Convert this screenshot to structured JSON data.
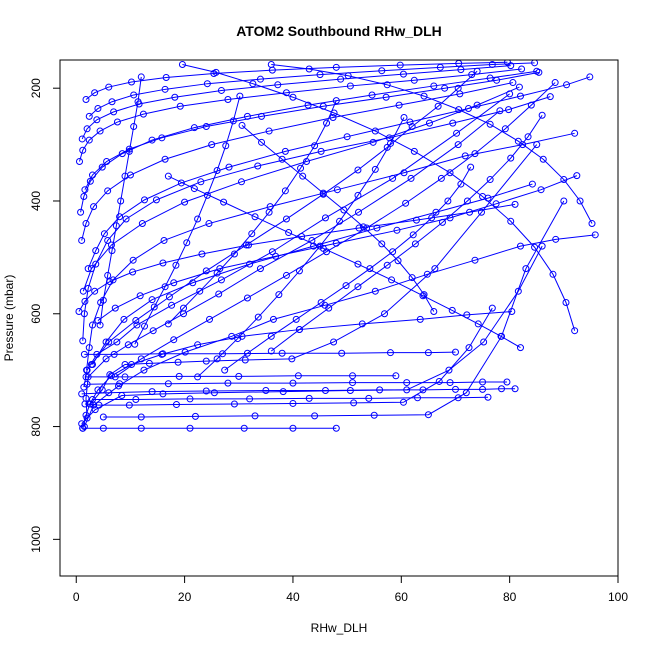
{
  "chart_data": {
    "type": "line",
    "title": "ATOM2 Southbound RHw_DLH",
    "xlabel": "RHw_DLH",
    "ylabel": "Pressure (mbar)",
    "xlim": [
      -3,
      100
    ],
    "ylim": [
      1065,
      150
    ],
    "y_inverted": true,
    "grid": false,
    "legend": "none",
    "series_color": "#0000ff",
    "x_ticks": [
      0,
      20,
      40,
      60,
      80,
      100
    ],
    "y_ticks": [
      200,
      400,
      600,
      800,
      1000
    ],
    "series": [
      {
        "x": [
          1.2,
          1.8,
          2.5,
          4.0,
          6.5,
          10.2,
          15.8,
          22.4,
          30.6,
          41.2,
          52.8,
          63.5,
          72.1,
          80.4
        ],
        "y": [
          803,
          780,
          760,
          735,
          710,
          690,
          672,
          655,
          640,
          628,
          618,
          610,
          602,
          596
        ]
      },
      {
        "x": [
          1.5,
          3.2,
          7.8,
          12.5,
          20.1,
          28.7,
          36.4,
          45.9,
          55.2,
          64.8,
          73.6,
          82.0,
          88.5,
          95.8
        ],
        "y": [
          800,
          762,
          728,
          700,
          668,
          640,
          610,
          585,
          560,
          530,
          505,
          480,
          468,
          460
        ]
      },
      {
        "x": [
          2.0,
          1.8,
          2.2,
          5.5,
          9.6,
          14.2,
          19.8,
          26.3,
          34.0,
          43.5,
          52.1,
          61.8,
          70.5,
          78.2
        ],
        "y": [
          785,
          750,
          712,
          680,
          655,
          630,
          600,
          565,
          520,
          470,
          420,
          360,
          300,
          240
        ]
      },
      {
        "x": [
          1.0,
          3.5,
          8.4,
          16.0,
          25.5,
          38.2,
          50.6,
          61.0,
          68.8,
          75.2,
          81.6,
          86.0
        ],
        "y": [
          795,
          770,
          745,
          742,
          740,
          738,
          736,
          735,
          700,
          650,
          560,
          480
        ]
      },
      {
        "x": [
          2.6,
          4.8,
          6.2,
          9.0,
          13.5,
          18.8,
          24.0,
          31.2,
          39.8,
          47.5,
          56.9,
          66.2,
          74.8,
          85.0
        ],
        "y": [
          760,
          735,
          708,
          690,
          688,
          686,
          684,
          682,
          680,
          650,
          600,
          520,
          420,
          300
        ]
      },
      {
        "x": [
          5.0,
          12.0,
          22.0,
          33.0,
          44.0,
          55.0,
          65.0,
          72.0,
          78.5,
          83.0,
          90.0
        ],
        "y": [
          783,
          783,
          782,
          781,
          781,
          780,
          779,
          740,
          640,
          520,
          400
        ]
      },
      {
        "x": [
          1.4,
          2.0,
          3.8,
          7.5,
          11.2,
          17.6,
          26.8,
          36.2,
          46.0,
          58.4,
          70.2,
          80.0
        ],
        "y": [
          730,
          700,
          672,
          650,
          620,
          585,
          540,
          490,
          430,
          360,
          280,
          210
        ]
      },
      {
        "x": [
          1.6,
          4.2,
          9.8,
          18.5,
          29.2,
          40.0,
          51.2,
          60.4,
          67.0,
          72.5,
          76.8
        ],
        "y": [
          760,
          762,
          762,
          761,
          760,
          759,
          758,
          757,
          720,
          660,
          590
        ]
      },
      {
        "x": [
          1.9,
          2.4,
          3.0,
          4.5,
          6.8,
          10.5,
          16.2,
          24.5,
          35.8,
          48.2,
          60.5,
          71.8,
          82.4,
          92.0
        ],
        "y": [
          700,
          660,
          620,
          580,
          540,
          505,
          470,
          440,
          410,
          380,
          350,
          320,
          300,
          280
        ]
      },
      {
        "x": [
          3.0,
          5.5,
          8.8,
          14.0,
          21.5,
          32.0,
          43.8,
          55.5,
          66.4,
          76.0,
          84.2
        ],
        "y": [
          690,
          650,
          610,
          575,
          545,
          512,
          480,
          448,
          420,
          395,
          370
        ]
      },
      {
        "x": [
          1.2,
          1.5,
          2.2,
          3.6,
          5.8,
          9.2,
          14.8,
          23.0,
          33.5,
          45.2,
          57.8,
          69.5,
          79.8,
          87.5
        ],
        "y": [
          648,
          600,
          555,
          512,
          470,
          432,
          398,
          366,
          338,
          312,
          288,
          262,
          238,
          215
        ]
      },
      {
        "x": [
          4.0,
          7.2,
          11.8,
          18.0,
          26.5,
          36.8,
          48.0,
          59.2,
          69.0,
          77.5,
          85.8,
          92.4
        ],
        "y": [
          612,
          590,
          568,
          545,
          520,
          498,
          475,
          452,
          430,
          405,
          380,
          355
        ]
      },
      {
        "x": [
          1.3,
          2.8,
          6.5,
          12.2,
          20.0,
          30.5,
          42.5,
          54.8,
          65.2,
          74.0,
          81.8
        ],
        "y": [
          560,
          520,
          478,
          440,
          402,
          366,
          330,
          296,
          262,
          230,
          198
        ]
      },
      {
        "x": [
          2.2,
          3.6,
          5.2,
          8.0,
          12.6,
          19.4,
          28.2,
          38.6,
          50.0,
          61.6,
          72.4,
          82.0,
          90.5,
          94.8
        ],
        "y": [
          520,
          488,
          458,
          428,
          398,
          368,
          340,
          312,
          286,
          260,
          236,
          214,
          194,
          180
        ]
      },
      {
        "x": [
          1.0,
          1.8,
          3.2,
          5.8,
          10.0,
          16.4,
          25.0,
          35.6,
          47.4,
          59.6,
          70.8,
          80.6
        ],
        "y": [
          470,
          440,
          410,
          382,
          354,
          326,
          300,
          276,
          252,
          230,
          210,
          190
        ]
      },
      {
        "x": [
          0.8,
          1.4,
          2.6,
          4.8,
          8.5,
          14.0,
          21.8,
          31.6,
          42.8,
          54.6,
          66.0,
          76.4,
          85.0
        ],
        "y": [
          420,
          392,
          365,
          340,
          316,
          292,
          270,
          250,
          230,
          212,
          196,
          182,
          170
        ]
      },
      {
        "x": [
          1.6,
          3.0,
          5.6,
          9.8,
          15.8,
          24.0,
          34.2,
          45.6,
          57.2,
          68.0,
          77.6,
          85.4
        ],
        "y": [
          380,
          354,
          330,
          308,
          288,
          268,
          250,
          232,
          216,
          200,
          186,
          172
        ]
      },
      {
        "x": [
          0.6,
          1.2,
          2.4,
          4.4,
          7.6,
          12.4,
          19.2,
          28.0,
          38.8,
          50.6,
          62.4,
          73.0,
          82.2
        ],
        "y": [
          330,
          310,
          292,
          276,
          260,
          246,
          232,
          220,
          208,
          196,
          186,
          176,
          166
        ]
      },
      {
        "x": [
          1.1,
          2.0,
          3.8,
          6.9,
          11.6,
          18.2,
          26.8,
          37.2,
          48.8,
          60.4,
          71.0,
          80.2
        ],
        "y": [
          290,
          272,
          256,
          242,
          228,
          216,
          204,
          194,
          184,
          175,
          167,
          160
        ]
      },
      {
        "x": [
          2.4,
          4.0,
          6.6,
          10.6,
          16.4,
          24.2,
          34.0,
          45.0,
          56.4,
          67.2,
          76.8,
          84.6
        ],
        "y": [
          250,
          236,
          224,
          212,
          202,
          192,
          184,
          176,
          169,
          163,
          158,
          155
        ]
      },
      {
        "x": [
          1.8,
          3.4,
          6.0,
          10.2,
          16.6,
          25.4,
          36.2,
          48.0,
          59.8,
          70.6,
          79.6
        ],
        "y": [
          220,
          208,
          198,
          189,
          181,
          174,
          168,
          163,
          159,
          156,
          154
        ]
      },
      {
        "x": [
          74.0,
          70.5,
          66.8,
          62.0,
          57.4,
          52.0,
          45.6,
          38.8,
          31.4,
          24.0,
          17.2,
          11.0,
          6.0,
          2.8
        ],
        "y": [
          170,
          200,
          232,
          268,
          305,
          345,
          388,
          432,
          478,
          524,
          570,
          612,
          650,
          690
        ]
      },
      {
        "x": [
          88.4,
          84.0,
          79.2,
          73.6,
          67.4,
          60.8,
          53.6,
          46.2,
          38.8,
          31.6,
          24.6,
          18.0,
          12.0,
          7.2
        ],
        "y": [
          190,
          230,
          272,
          316,
          360,
          404,
          448,
          490,
          532,
          572,
          610,
          646,
          680,
          712
        ]
      },
      {
        "x": [
          92.0,
          90.4,
          88.0,
          84.6,
          80.2,
          75.0,
          69.0,
          62.4,
          55.2,
          47.6,
          40.0,
          32.6,
          25.8,
          19.6
        ],
        "y": [
          630,
          580,
          530,
          482,
          436,
          392,
          350,
          312,
          276,
          244,
          216,
          192,
          172,
          158
        ]
      },
      {
        "x": [
          95.2,
          93.0,
          90.0,
          86.2,
          81.6,
          76.4,
          70.6,
          64.2,
          57.4,
          50.2,
          43.0,
          36.0
        ],
        "y": [
          440,
          400,
          362,
          326,
          294,
          264,
          238,
          214,
          194,
          178,
          166,
          158
        ]
      },
      {
        "x": [
          82.0,
          78.4,
          74.2,
          69.4,
          64.0,
          58.2,
          52.0,
          45.6,
          39.2,
          33.0,
          27.2,
          21.8,
          17.0
        ],
        "y": [
          660,
          640,
          618,
          594,
          568,
          540,
          512,
          484,
          456,
          428,
          402,
          378,
          356
        ]
      },
      {
        "x": [
          60.5,
          58.0,
          55.2,
          52.0,
          48.6,
          45.0,
          41.2,
          37.4,
          33.6,
          29.8,
          26.0,
          22.4
        ],
        "y": [
          252,
          298,
          344,
          390,
          436,
          480,
          524,
          566,
          606,
          644,
          680,
          712
        ]
      },
      {
        "x": [
          48.0,
          46.2,
          44.0,
          41.4,
          38.6,
          35.6,
          32.4,
          29.2,
          26.0,
          22.8,
          19.8,
          17.0
        ],
        "y": [
          222,
          262,
          302,
          342,
          382,
          420,
          458,
          494,
          528,
          560,
          590,
          618
        ]
      },
      {
        "x": [
          30.2,
          29.0,
          27.6,
          26.0,
          24.2,
          22.4,
          20.4,
          18.4,
          16.4,
          14.4,
          12.6,
          10.8
        ],
        "y": [
          214,
          258,
          302,
          346,
          390,
          432,
          474,
          514,
          552,
          588,
          622,
          654
        ]
      },
      {
        "x": [
          12.0,
          11.4,
          10.6,
          9.8,
          9.0,
          8.2,
          7.4,
          6.6,
          5.8,
          5.0,
          4.4
        ],
        "y": [
          180,
          224,
          268,
          312,
          356,
          400,
          444,
          488,
          532,
          576,
          620
        ]
      },
      {
        "x": [
          1.0,
          6.0,
          14.0,
          24.0,
          35.0,
          46.0,
          56.0,
          64.0,
          70.0,
          75.0,
          78.5,
          81.0
        ],
        "y": [
          742,
          740,
          738,
          737,
          736,
          736,
          735,
          735,
          734,
          734,
          733,
          733
        ]
      },
      {
        "x": [
          2.0,
          8.0,
          17.0,
          28.0,
          40.0,
          51.0,
          61.0,
          69.0,
          75.0,
          79.5
        ],
        "y": [
          725,
          724,
          724,
          723,
          723,
          722,
          722,
          722,
          721,
          721
        ]
      },
      {
        "x": [
          1.5,
          7.0,
          16.0,
          27.0,
          38.0,
          49.0,
          58.0,
          65.0,
          70.0
        ],
        "y": [
          672,
          672,
          671,
          671,
          670,
          670,
          669,
          669,
          668
        ]
      },
      {
        "x": [
          1.8,
          9.0,
          19.0,
          30.0,
          41.0,
          51.0,
          59.0
        ],
        "y": [
          712,
          712,
          711,
          711,
          710,
          710,
          710
        ]
      },
      {
        "x": [
          3.0,
          11.0,
          21.0,
          32.0,
          43.0,
          54.0,
          63.0,
          70.5,
          76.0
        ],
        "y": [
          752,
          752,
          751,
          751,
          750,
          750,
          749,
          749,
          748
        ]
      },
      {
        "x": [
          1.2,
          5.0,
          12.0,
          21.0,
          31.0,
          40.0,
          48.0
        ],
        "y": [
          803,
          803,
          803,
          803,
          803,
          803,
          803
        ]
      },
      {
        "x": [
          0.5,
          1.6,
          3.4,
          6.2,
          10.4,
          16.0,
          23.2,
          31.8,
          41.6,
          52.2,
          62.8,
          72.6,
          81.0
        ],
        "y": [
          596,
          578,
          560,
          543,
          526,
          510,
          494,
          478,
          463,
          448,
          434,
          420,
          406
        ]
      },
      {
        "x": [
          66.0,
          64.2,
          62.0,
          59.4,
          56.4,
          53.0,
          49.4,
          45.6,
          41.8,
          38.0,
          34.2,
          30.6
        ],
        "y": [
          596,
          566,
          536,
          506,
          476,
          446,
          416,
          386,
          356,
          326,
          296,
          266
        ]
      },
      {
        "x": [
          72.8,
          71.0,
          68.6,
          65.6,
          62.2,
          58.4,
          54.2,
          49.8,
          45.2,
          40.6,
          36.0,
          31.6,
          27.4
        ],
        "y": [
          340,
          370,
          400,
          430,
          460,
          490,
          520,
          550,
          580,
          610,
          640,
          670,
          700
        ]
      },
      {
        "x": [
          86.0,
          83.4,
          80.2,
          76.4,
          72.2,
          67.6,
          62.6,
          57.4,
          52.0,
          46.6,
          41.2,
          36.0
        ],
        "y": [
          248,
          286,
          324,
          362,
          400,
          438,
          476,
          514,
          552,
          590,
          628,
          666
        ]
      }
    ]
  }
}
